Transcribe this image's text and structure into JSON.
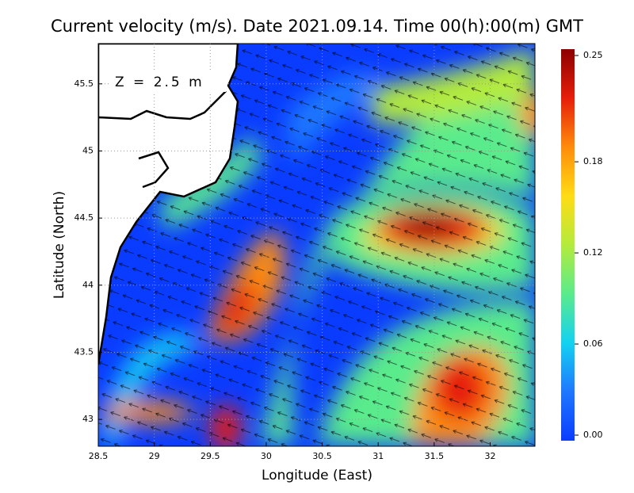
{
  "chart_data": {
    "type": "heatmap",
    "title": "Current velocity (m/s). Date 2021.09.14. Time 00(h):00(m) GMT",
    "annotation": "Z = 2.5 m",
    "xlabel": "Longitude (East)",
    "ylabel": "Latitude (North)",
    "xlim": [
      28.5,
      32.4
    ],
    "xticks": [
      28.5,
      29,
      29.5,
      30,
      30.5,
      31,
      31.5,
      32
    ],
    "ylim": [
      42.8,
      45.8
    ],
    "yticks": [
      43,
      43.5,
      44,
      44.5,
      45,
      45.5
    ],
    "grid": true,
    "clim": [
      0,
      0.25
    ],
    "cticks": [
      {
        "value": 0,
        "label": "0.00"
      },
      0.06,
      0.12,
      0.18,
      0.25
    ],
    "colormap": [
      "#0a3cff",
      "#1e78ff",
      "#14d2f0",
      "#5aeb8c",
      "#b4eb3c",
      "#ffdc14",
      "#ff8c0a",
      "#e61e0a",
      "#8c0000"
    ]
  }
}
